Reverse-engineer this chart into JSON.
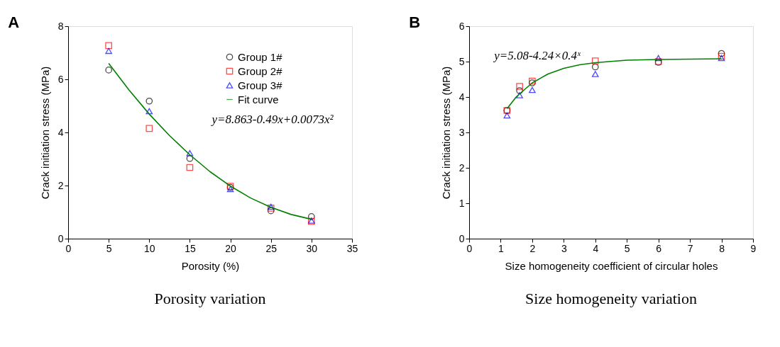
{
  "chart_data": [
    {
      "type": "scatter",
      "title": "A",
      "xlabel": "Porosity (%)",
      "ylabel": "Crack initiation stress (MPa)",
      "xlim": [
        0,
        35
      ],
      "xticks": [
        0,
        5,
        10,
        15,
        20,
        25,
        30,
        35
      ],
      "ylim": [
        0,
        8
      ],
      "yticks": [
        0,
        2,
        4,
        6,
        8
      ],
      "grid": false,
      "legend": "top right",
      "x": [
        5,
        10,
        15,
        20,
        25,
        30
      ],
      "series": [
        {
          "name": "Group 1#",
          "color": "#000000",
          "marker": "circle",
          "values": [
            6.35,
            5.18,
            3.02,
            1.93,
            1.05,
            0.83
          ]
        },
        {
          "name": "Group 2#",
          "color": "#ff0000",
          "marker": "square",
          "values": [
            7.27,
            4.15,
            2.68,
            1.97,
            1.15,
            0.65
          ]
        },
        {
          "name": "Group 3#",
          "color": "#0000ff",
          "marker": "triangle",
          "values": [
            7.07,
            4.8,
            3.22,
            1.87,
            1.2,
            0.68
          ]
        },
        {
          "name": "Fit curve",
          "type": "line",
          "color": "#008000",
          "marker": "none",
          "line_style": "solid",
          "x": [
            5,
            7.5,
            10,
            12.5,
            15,
            17.5,
            20,
            22.5,
            25,
            27.5,
            30
          ],
          "values": [
            6.6,
            5.6,
            4.69,
            3.88,
            3.16,
            2.52,
            1.98,
            1.53,
            1.18,
            0.91,
            0.73
          ]
        }
      ],
      "annotations": [
        "y=8.863-0.49x+0.0073x²",
        "Porosity variation"
      ]
    },
    {
      "type": "scatter",
      "title": "B",
      "xlabel": "Size homogeneity coefficient of circular holes",
      "ylabel": "Crack initiation stress (MPa)",
      "xlim": [
        0,
        9
      ],
      "xticks": [
        0,
        1,
        2,
        3,
        4,
        5,
        6,
        7,
        8,
        9
      ],
      "ylim": [
        0,
        6
      ],
      "yticks": [
        0,
        1,
        2,
        3,
        4,
        5,
        6
      ],
      "grid": false,
      "legend": "right",
      "x": [
        1.2,
        1.6,
        2,
        4,
        6,
        8
      ],
      "series": [
        {
          "name": "Group 1#",
          "color": "#000000",
          "marker": "circle",
          "values": [
            3.62,
            4.18,
            4.4,
            4.85,
            4.98,
            5.23
          ]
        },
        {
          "name": "Group 2#",
          "color": "#ff0000",
          "marker": "square",
          "values": [
            3.62,
            4.3,
            4.45,
            5.02,
            5.0,
            5.15
          ]
        },
        {
          "name": "Group 3#",
          "color": "#0000ff",
          "marker": "triangle",
          "values": [
            3.48,
            4.05,
            4.2,
            4.65,
            5.1,
            5.1
          ]
        },
        {
          "name": "Fit curve",
          "type": "line",
          "color": "#008000",
          "marker": "none",
          "line_style": "solid",
          "x": [
            1.2,
            1.5,
            2,
            2.5,
            3,
            3.5,
            4,
            5,
            6,
            7,
            8
          ],
          "values": [
            3.67,
            4.01,
            4.4,
            4.65,
            4.81,
            4.91,
            4.97,
            5.04,
            5.06,
            5.07,
            5.08
          ]
        }
      ],
      "annotations": [
        "y=5.08-4.24×0.4ˣ",
        "Size homogeneity variation"
      ]
    }
  ]
}
